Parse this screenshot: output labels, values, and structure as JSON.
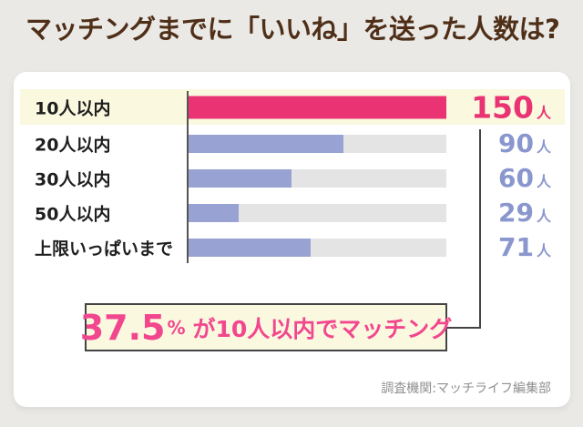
{
  "title": "マッチングまでに「いいね」を送った人数は?",
  "chart_data": {
    "type": "bar",
    "orientation": "horizontal",
    "categories": [
      "10人以内",
      "20人以内",
      "30人以内",
      "50人以内",
      "上限いっぱいまで"
    ],
    "values": [
      150,
      90,
      60,
      29,
      71
    ],
    "unit": "人",
    "xlim": [
      0,
      150
    ],
    "highlight_index": 0,
    "grid": false,
    "legend": false,
    "colors": {
      "highlight_bar": "#E93372",
      "bar": "#98A3D4",
      "track": "#E4E4E4",
      "highlight_value": "#E93372",
      "value": "#8A97CE",
      "highlight_row_bg": "#FAF8DE",
      "axis": "#555555",
      "connector": "#444444"
    }
  },
  "callout": {
    "percent": "37.5",
    "percent_symbol": "%",
    "text": "が10人以内でマッチング",
    "color": "#F2478F",
    "bg": "#FAF8DF",
    "border": "#444444"
  },
  "source": "調査機関:マッチライフ編集部"
}
